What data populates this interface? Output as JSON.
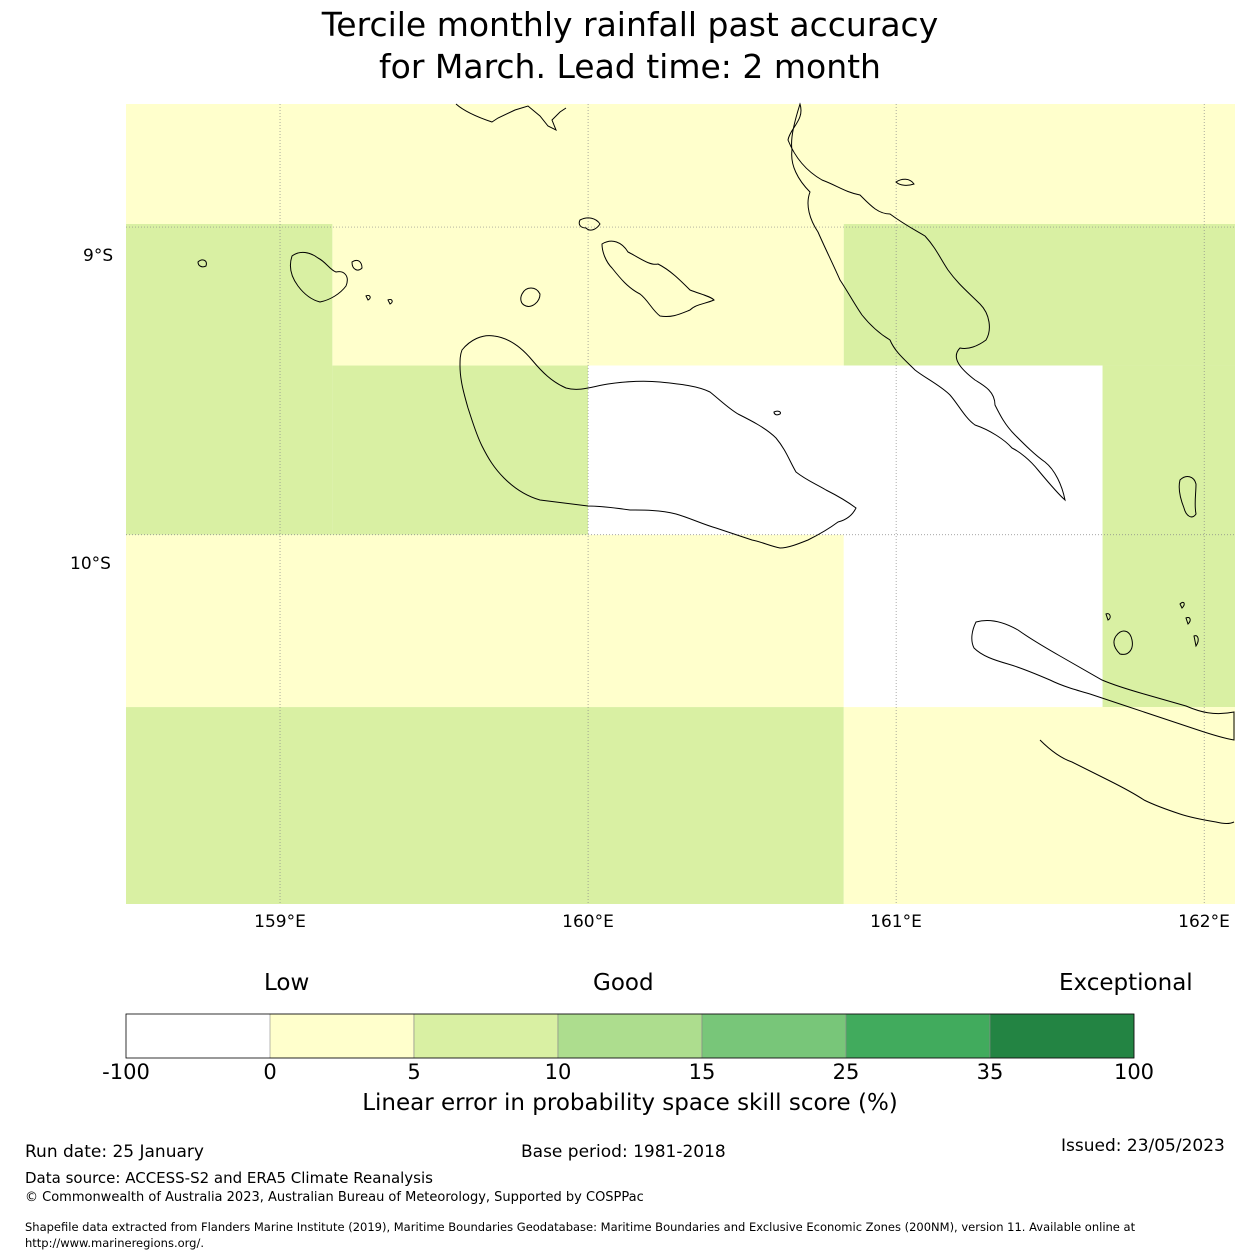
{
  "title": {
    "line1": "Tercile monthly rainfall past accuracy",
    "line2": "for March. Lead time: 2 month"
  },
  "map": {
    "lat_labels": [
      "9°S",
      "10°S"
    ],
    "lon_labels": [
      "159°E",
      "160°E",
      "161°E",
      "162°E"
    ],
    "lon_range": [
      158.5,
      162.1
    ],
    "lat_range": [
      -8.6,
      -11.2
    ],
    "cells": [
      {
        "lon0": 158.5,
        "lon1": 162.1,
        "lat0": -8.6,
        "lat1": -8.99,
        "class": "0-5"
      },
      {
        "lon0": 158.5,
        "lon1": 159.17,
        "lat0": -8.99,
        "lat1": -10.0,
        "class": "5-10"
      },
      {
        "lon0": 159.17,
        "lon1": 160.83,
        "lat0": -8.99,
        "lat1": -9.45,
        "class": "0-5"
      },
      {
        "lon0": 160.83,
        "lon1": 162.1,
        "lat0": -8.99,
        "lat1": -9.45,
        "class": "5-10"
      },
      {
        "lon0": 159.17,
        "lon1": 160.0,
        "lat0": -9.45,
        "lat1": -10.0,
        "class": "5-10"
      },
      {
        "lon0": 160.0,
        "lon1": 161.67,
        "lat0": -9.45,
        "lat1": -10.0,
        "class": "-100-0"
      },
      {
        "lon0": 161.67,
        "lon1": 162.1,
        "lat0": -9.45,
        "lat1": -10.56,
        "class": "5-10"
      },
      {
        "lon0": 158.5,
        "lon1": 160.83,
        "lat0": -10.0,
        "lat1": -10.56,
        "class": "0-5"
      },
      {
        "lon0": 160.83,
        "lon1": 161.67,
        "lat0": -10.0,
        "lat1": -10.56,
        "class": "-100-0"
      },
      {
        "lon0": 158.5,
        "lon1": 160.83,
        "lat0": -10.56,
        "lat1": -11.2,
        "class": "5-10"
      },
      {
        "lon0": 160.83,
        "lon1": 162.1,
        "lat0": -10.56,
        "lat1": -11.2,
        "class": "0-5"
      }
    ]
  },
  "colorbar": {
    "words": {
      "low": "Low",
      "good": "Good",
      "exceptional": "Exceptional"
    },
    "ticks": [
      "-100",
      "0",
      "5",
      "10",
      "15",
      "25",
      "35",
      "100"
    ],
    "classes": [
      {
        "id": "-100-0",
        "color": "#ffffff"
      },
      {
        "id": "0-5",
        "color": "#ffffcc"
      },
      {
        "id": "5-10",
        "color": "#d9f0a3"
      },
      {
        "id": "10-15",
        "color": "#addd8e"
      },
      {
        "id": "15-25",
        "color": "#78c679"
      },
      {
        "id": "25-35",
        "color": "#41ab5d"
      },
      {
        "id": "35-100",
        "color": "#238443"
      }
    ],
    "label": "Linear error in probability space skill score (%)"
  },
  "footer": {
    "run_date": "Run date: 25 January",
    "base_period": "Base period: 1981-2018",
    "issued": "Issued: 23/05/2023",
    "data_source": "Data source: ACCESS-S2 and ERA5 Climate Reanalysis",
    "copyright": "© Commonwealth of Australia 2023, Australian Bureau of Meteorology, Supported by COSPPac",
    "shapefile_line1": "Shapefile data extracted from Flanders Marine Institute (2019), Maritime Boundaries Geodatabase: Maritime Boundaries and Exclusive Economic Zones (200NM), version 11. Available online at",
    "shapefile_line2": "http://www.marineregions.org/."
  }
}
